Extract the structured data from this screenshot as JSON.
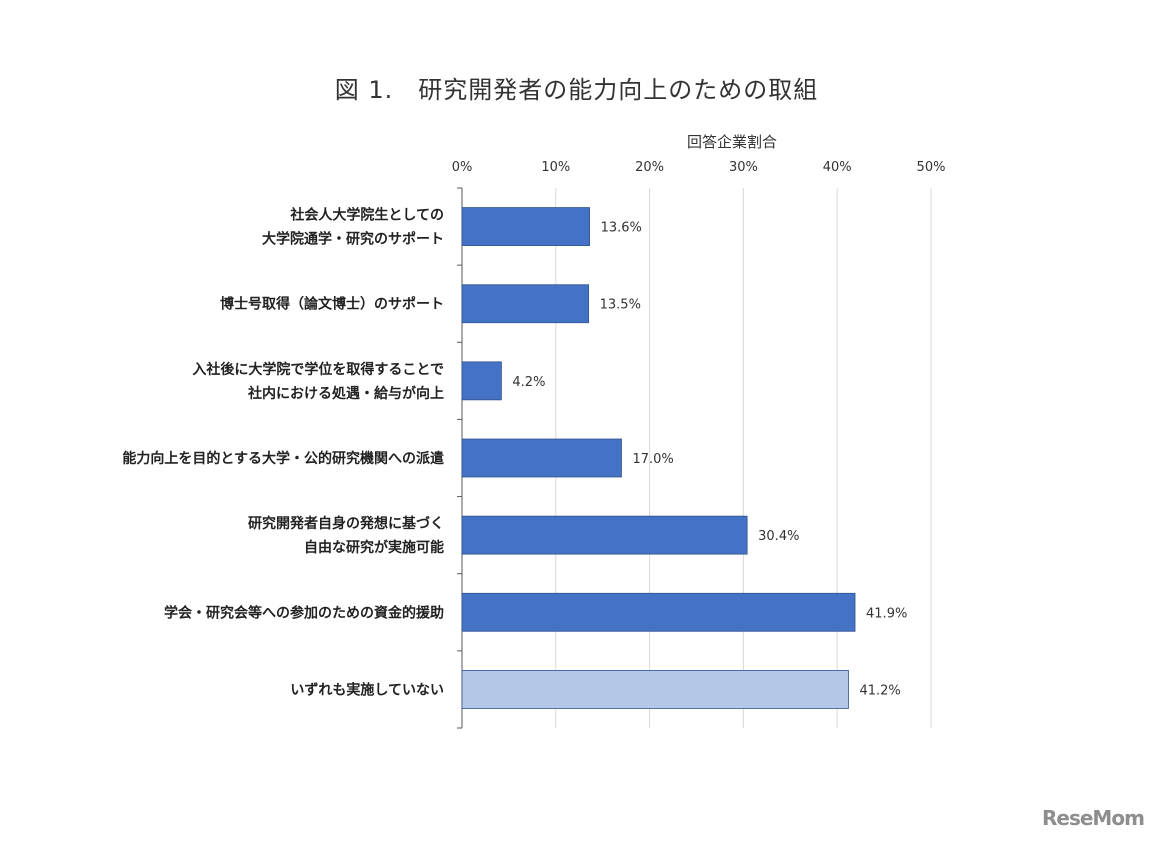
{
  "chart_data": {
    "type": "bar",
    "orientation": "horizontal",
    "title": "図 1.　研究開発者の能力向上のための取組",
    "xlabel": "回答企業割合",
    "ylabel": "",
    "xlim": [
      0,
      50
    ],
    "tick_values": [
      0,
      10,
      20,
      30,
      40,
      50
    ],
    "tick_labels": [
      "0%",
      "10%",
      "20%",
      "30%",
      "40%",
      "50%"
    ],
    "grid": true,
    "categories": [
      [
        "社会人大学院生としての",
        "大学院通学・研究のサポート"
      ],
      [
        "博士号取得（論文博士）のサポート"
      ],
      [
        "入社後に大学院で学位を取得することで",
        "社内における処遇・給与が向上"
      ],
      [
        "能力向上を目的とする大学・公的研究機関への派遣"
      ],
      [
        "研究開発者自身の発想に基づく",
        "自由な研究が実施可能"
      ],
      [
        "学会・研究会等への参加のための資金的援助"
      ],
      [
        "いずれも実施していない"
      ]
    ],
    "values": [
      13.6,
      13.5,
      4.2,
      17.0,
      30.4,
      41.9,
      41.2
    ],
    "data_labels": [
      "13.6%",
      "13.5%",
      "4.2%",
      "17.0%",
      "30.4%",
      "41.9%",
      "41.2%"
    ],
    "colors": [
      "#4472c4",
      "#4472c4",
      "#4472c4",
      "#4472c4",
      "#4472c4",
      "#4472c4",
      "#b4c7e7"
    ]
  },
  "watermark": "ReseMom"
}
